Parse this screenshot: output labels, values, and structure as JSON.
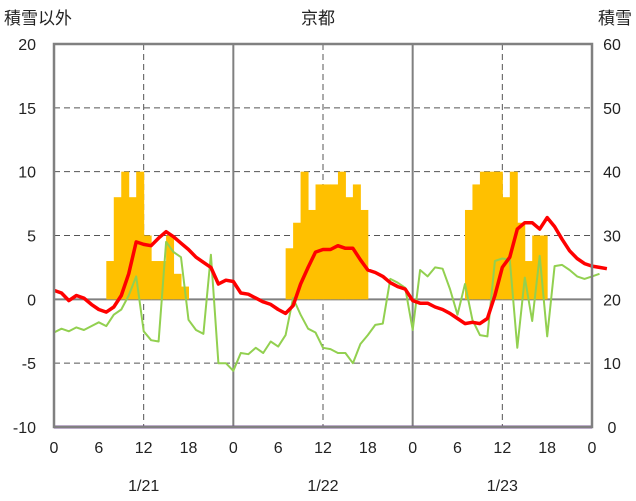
{
  "chart_data": {
    "type": "bar+line",
    "title": "京都",
    "ylabel_left": "積雪以外",
    "ylabel_right": "積雪",
    "ylim_left": [
      -10,
      20
    ],
    "ylim_right": [
      0,
      60
    ],
    "yticks_left": [
      "20",
      "15",
      "10",
      "5",
      "0",
      "-5",
      "-10"
    ],
    "yticks_right": [
      "60",
      "50",
      "40",
      "30",
      "20",
      "10",
      "0"
    ],
    "x_hours": [
      0,
      72
    ],
    "xtick_labels": [
      "0",
      "6",
      "12",
      "18",
      "0",
      "6",
      "12",
      "18",
      "0",
      "6",
      "12",
      "18",
      "0"
    ],
    "dates": [
      "1/21",
      "1/22",
      "1/23"
    ],
    "grid": true,
    "colors": {
      "bars": "#ffc000",
      "red_line": "#ff0000",
      "green_line": "#92d050",
      "purple_line": "#7030a0",
      "frame": "#808080",
      "grid": "#555555"
    },
    "bars": [
      {
        "x": 7.5,
        "v": 3
      },
      {
        "x": 8.5,
        "v": 8
      },
      {
        "x": 9.5,
        "v": 10
      },
      {
        "x": 10.5,
        "v": 8
      },
      {
        "x": 11.5,
        "v": 10
      },
      {
        "x": 12.5,
        "v": 5
      },
      {
        "x": 13.5,
        "v": 3
      },
      {
        "x": 14.5,
        "v": 3
      },
      {
        "x": 15.5,
        "v": 5
      },
      {
        "x": 16.5,
        "v": 2
      },
      {
        "x": 17.5,
        "v": 1
      },
      {
        "x": 31.5,
        "v": 4
      },
      {
        "x": 32.5,
        "v": 6
      },
      {
        "x": 33.5,
        "v": 10
      },
      {
        "x": 34.5,
        "v": 7
      },
      {
        "x": 35.5,
        "v": 9
      },
      {
        "x": 36.5,
        "v": 9
      },
      {
        "x": 37.5,
        "v": 9
      },
      {
        "x": 38.5,
        "v": 10
      },
      {
        "x": 39.5,
        "v": 8
      },
      {
        "x": 40.5,
        "v": 9
      },
      {
        "x": 41.5,
        "v": 7
      },
      {
        "x": 55.5,
        "v": 7
      },
      {
        "x": 56.5,
        "v": 9
      },
      {
        "x": 57.5,
        "v": 10
      },
      {
        "x": 58.5,
        "v": 10
      },
      {
        "x": 59.5,
        "v": 10
      },
      {
        "x": 60.5,
        "v": 8
      },
      {
        "x": 61.5,
        "v": 10
      },
      {
        "x": 62.5,
        "v": 6
      },
      {
        "x": 63.5,
        "v": 3
      },
      {
        "x": 64.5,
        "v": 5
      },
      {
        "x": 65.5,
        "v": 5
      }
    ],
    "red_series": [
      [
        0,
        0.7
      ],
      [
        1,
        0.5
      ],
      [
        2,
        -0.1
      ],
      [
        3,
        0.3
      ],
      [
        4,
        0.1
      ],
      [
        5,
        -0.4
      ],
      [
        6,
        -0.8
      ],
      [
        7,
        -1.0
      ],
      [
        8,
        -0.6
      ],
      [
        9,
        0.3
      ],
      [
        10,
        2.0
      ],
      [
        11,
        4.5
      ],
      [
        12,
        4.3
      ],
      [
        13,
        4.2
      ],
      [
        14,
        4.8
      ],
      [
        15,
        5.3
      ],
      [
        16,
        4.9
      ],
      [
        17,
        4.4
      ],
      [
        18,
        3.9
      ],
      [
        19,
        3.3
      ],
      [
        20,
        2.9
      ],
      [
        21,
        2.5
      ],
      [
        22,
        1.2
      ],
      [
        23,
        1.5
      ],
      [
        24,
        1.4
      ],
      [
        25,
        0.5
      ],
      [
        26,
        0.4
      ],
      [
        27,
        0.1
      ],
      [
        28,
        -0.2
      ],
      [
        29,
        -0.4
      ],
      [
        30,
        -0.8
      ],
      [
        31,
        -1.1
      ],
      [
        32,
        -0.5
      ],
      [
        33,
        1.2
      ],
      [
        34,
        2.5
      ],
      [
        35,
        3.7
      ],
      [
        36,
        3.9
      ],
      [
        37,
        3.9
      ],
      [
        38,
        4.2
      ],
      [
        39,
        4.0
      ],
      [
        40,
        4.0
      ],
      [
        41,
        3.1
      ],
      [
        42,
        2.3
      ],
      [
        43,
        2.1
      ],
      [
        44,
        1.8
      ],
      [
        45,
        1.3
      ],
      [
        46,
        1.0
      ],
      [
        47,
        0.8
      ],
      [
        48,
        -0.1
      ],
      [
        49,
        -0.3
      ],
      [
        50,
        -0.3
      ],
      [
        51,
        -0.6
      ],
      [
        52,
        -0.8
      ],
      [
        53,
        -1.1
      ],
      [
        54,
        -1.5
      ],
      [
        55,
        -1.9
      ],
      [
        56,
        -1.8
      ],
      [
        57,
        -1.9
      ],
      [
        58,
        -1.5
      ],
      [
        59,
        0.3
      ],
      [
        60,
        2.5
      ],
      [
        61,
        3.3
      ],
      [
        62,
        5.5
      ],
      [
        63,
        6.0
      ],
      [
        64,
        6.0
      ],
      [
        65,
        5.5
      ],
      [
        66,
        6.4
      ],
      [
        67,
        5.7
      ],
      [
        68,
        4.7
      ],
      [
        69,
        3.8
      ],
      [
        70,
        3.2
      ],
      [
        71,
        2.8
      ],
      [
        72,
        2.6
      ],
      [
        73,
        2.5
      ],
      [
        74,
        2.4
      ]
    ],
    "green_series": [
      [
        0,
        -2.6
      ],
      [
        1,
        -2.3
      ],
      [
        2,
        -2.5
      ],
      [
        3,
        -2.2
      ],
      [
        4,
        -2.4
      ],
      [
        5,
        -2.1
      ],
      [
        6,
        -1.8
      ],
      [
        7,
        -2.1
      ],
      [
        8,
        -1.2
      ],
      [
        9,
        -0.8
      ],
      [
        10,
        0.3
      ],
      [
        11,
        1.8
      ],
      [
        12,
        -2.5
      ],
      [
        13,
        -3.2
      ],
      [
        14,
        -3.3
      ],
      [
        15,
        4.5
      ],
      [
        16,
        3.7
      ],
      [
        17,
        3.3
      ],
      [
        18,
        -1.6
      ],
      [
        19,
        -2.4
      ],
      [
        20,
        -2.7
      ],
      [
        21,
        3.5
      ],
      [
        22,
        -5.0
      ],
      [
        23,
        -5.0
      ],
      [
        24,
        -5.6
      ],
      [
        25,
        -4.2
      ],
      [
        26,
        -4.3
      ],
      [
        27,
        -3.8
      ],
      [
        28,
        -4.2
      ],
      [
        29,
        -3.3
      ],
      [
        30,
        -3.7
      ],
      [
        31,
        -2.8
      ],
      [
        32,
        0.1
      ],
      [
        33,
        -1.2
      ],
      [
        34,
        -2.3
      ],
      [
        35,
        -2.6
      ],
      [
        36,
        -3.8
      ],
      [
        37,
        -3.9
      ],
      [
        38,
        -4.2
      ],
      [
        39,
        -4.2
      ],
      [
        40,
        -5.0
      ],
      [
        41,
        -3.5
      ],
      [
        42,
        -2.8
      ],
      [
        43,
        -2.0
      ],
      [
        44,
        -1.9
      ],
      [
        45,
        1.6
      ],
      [
        46,
        1.3
      ],
      [
        47,
        0.9
      ],
      [
        48,
        -2.4
      ],
      [
        49,
        2.3
      ],
      [
        50,
        1.8
      ],
      [
        51,
        2.5
      ],
      [
        52,
        2.4
      ],
      [
        53,
        0.8
      ],
      [
        54,
        -1.2
      ],
      [
        55,
        1.2
      ],
      [
        56,
        -1.6
      ],
      [
        57,
        -2.8
      ],
      [
        58,
        -2.9
      ],
      [
        59,
        3.0
      ],
      [
        60,
        3.2
      ],
      [
        61,
        3.1
      ],
      [
        62,
        -3.8
      ],
      [
        63,
        1.7
      ],
      [
        64,
        -1.7
      ],
      [
        65,
        3.4
      ],
      [
        66,
        -2.9
      ],
      [
        67,
        2.6
      ],
      [
        68,
        2.7
      ],
      [
        69,
        2.3
      ],
      [
        70,
        1.8
      ],
      [
        71,
        1.6
      ],
      [
        72,
        1.8
      ],
      [
        73,
        2.0
      ]
    ],
    "purple_series": [
      [
        0,
        -10
      ],
      [
        72,
        -10
      ]
    ]
  }
}
